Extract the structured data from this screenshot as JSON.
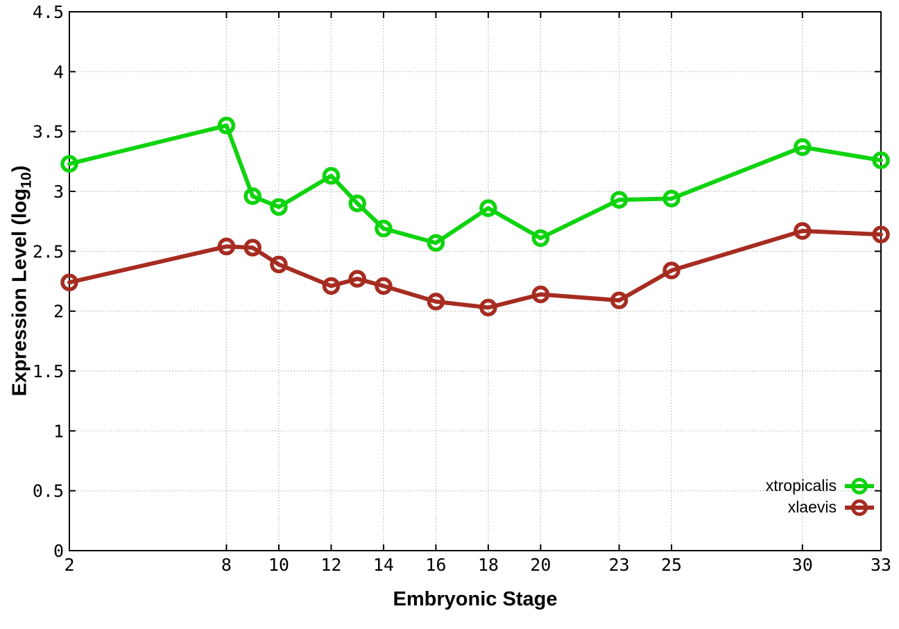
{
  "chart_data": {
    "type": "line",
    "title": "",
    "xlabel": "Embryonic Stage",
    "ylabel": "Expression Level (log10)",
    "ylabel_parts": {
      "main": "Expression Level (log",
      "sub": "10",
      "close": ")"
    },
    "xlim": [
      2,
      33
    ],
    "ylim": [
      0,
      4.5
    ],
    "grid": true,
    "legend_position": "inside bottom-right",
    "marker": "open-circle",
    "axis_color": "#000000",
    "grid_color": "#a8a8a8",
    "x": [
      2,
      8,
      9,
      10,
      12,
      13,
      14,
      16,
      18,
      20,
      23,
      25,
      30,
      33
    ],
    "xticks": [
      2,
      8,
      10,
      12,
      14,
      16,
      18,
      20,
      23,
      25,
      30,
      33
    ],
    "xtick_labels": [
      "2",
      "8",
      "10",
      "12",
      "14",
      "16",
      "18",
      "20",
      "23",
      "25",
      "30",
      "33"
    ],
    "yticks": [
      0,
      0.5,
      1,
      1.5,
      2,
      2.5,
      3,
      3.5,
      4,
      4.5
    ],
    "ytick_labels": [
      "0",
      "0.5",
      "1",
      "1.5",
      "2",
      "2.5",
      "3",
      "3.5",
      "4",
      "4.5"
    ],
    "series": [
      {
        "name": "xtropicalis",
        "color": "#0fd30f",
        "values": [
          3.23,
          3.55,
          2.96,
          2.87,
          3.13,
          2.9,
          2.69,
          2.57,
          2.86,
          2.61,
          2.93,
          2.94,
          3.37,
          3.26
        ]
      },
      {
        "name": "xlaevis",
        "color": "#a62c21",
        "values": [
          2.24,
          2.54,
          2.53,
          2.39,
          2.21,
          2.27,
          2.21,
          2.08,
          2.03,
          2.14,
          2.09,
          2.34,
          2.67,
          2.64
        ]
      }
    ]
  }
}
